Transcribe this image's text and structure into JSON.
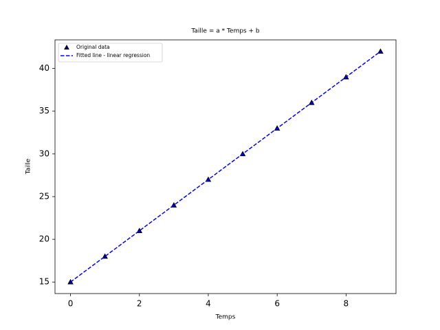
{
  "chart_data": {
    "type": "line",
    "title": "Taille = a * Temps + b",
    "xlabel": "Temps",
    "ylabel": "Taille",
    "x": [
      0,
      1,
      2,
      3,
      4,
      5,
      6,
      7,
      8,
      9
    ],
    "series": [
      {
        "name": "Original data",
        "color": "#000080",
        "mode": "markers",
        "marker": "triangle",
        "values": [
          15,
          18,
          21,
          24,
          27,
          30,
          33,
          36,
          39,
          42
        ]
      },
      {
        "name": "Fitted line - linear regression",
        "color": "#0000ff",
        "mode": "dashed",
        "values": [
          15,
          18,
          21,
          24,
          27,
          30,
          33,
          36,
          39,
          42
        ]
      }
    ],
    "xlim": [
      -0.45,
      9.45
    ],
    "xticks": [
      0,
      2,
      4,
      6,
      8
    ],
    "ylim": [
      13.65,
      43.35
    ],
    "yticks": [
      15,
      20,
      25,
      30,
      35,
      40
    ],
    "grid": false,
    "legend": "upper left"
  }
}
